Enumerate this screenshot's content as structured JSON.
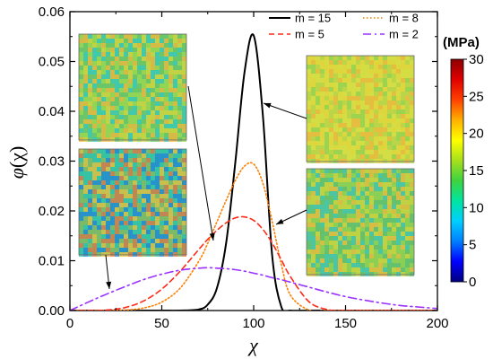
{
  "chart_data": {
    "type": "line",
    "xlabel": "χ",
    "ylabel": "φ(χ)",
    "ylabel_parts": [
      "φ",
      "(χ)"
    ],
    "xlim": [
      0,
      200
    ],
    "ylim": [
      0,
      0.06
    ],
    "x_ticks": [
      0,
      50,
      100,
      150,
      200
    ],
    "x_tick_labels": [
      "0",
      "50",
      "100",
      "150",
      "200"
    ],
    "y_ticks": [
      0,
      0.01,
      0.02,
      0.03,
      0.04,
      0.05,
      0.06
    ],
    "y_tick_labels": [
      "0.00",
      "0.01",
      "0.02",
      "0.03",
      "0.04",
      "0.05",
      "0.06"
    ],
    "grid": false,
    "legend_placement": "top-right",
    "x": [
      0,
      10,
      20,
      30,
      40,
      50,
      60,
      70,
      75,
      80,
      85,
      90,
      95,
      100,
      105,
      110,
      115,
      120,
      130,
      140,
      150,
      160,
      170,
      180,
      190,
      200
    ],
    "series": [
      {
        "name": "m = 15",
        "color": "#000000",
        "dash": "solid",
        "values": [
          0,
          0,
          0,
          0,
          0,
          0,
          0,
          0.0002,
          0.0012,
          0.0045,
          0.0135,
          0.0297,
          0.0478,
          0.0552,
          0.0392,
          0.0113,
          0.0008,
          0,
          0,
          0,
          0,
          0,
          0,
          0,
          0,
          0
        ]
      },
      {
        "name": "m = 8",
        "color": "#ff7f00",
        "dash": "dotted",
        "values": [
          0,
          0,
          0,
          0.0001,
          0.0005,
          0.0017,
          0.0045,
          0.0098,
          0.0135,
          0.0178,
          0.0221,
          0.0261,
          0.029,
          0.0294,
          0.0256,
          0.018,
          0.0093,
          0.0031,
          0.0001,
          0,
          0,
          0,
          0,
          0,
          0,
          0
        ]
      },
      {
        "name": "m = 5",
        "color": "#ff2a1a",
        "dash": "dashed",
        "values": [
          0,
          0,
          0.0001,
          0.0006,
          0.0019,
          0.0043,
          0.0079,
          0.0122,
          0.0143,
          0.0161,
          0.0176,
          0.0186,
          0.0188,
          0.0181,
          0.0163,
          0.0136,
          0.0102,
          0.0068,
          0.0018,
          0.0002,
          0,
          0,
          0,
          0,
          0,
          0
        ]
      },
      {
        "name": "m = 2",
        "color": "#9b30ff",
        "dash": "dashdot",
        "values": [
          0,
          0.0017,
          0.0033,
          0.0048,
          0.0062,
          0.0073,
          0.0081,
          0.0085,
          0.0086,
          0.0085,
          0.0084,
          0.0082,
          0.0079,
          0.0075,
          0.0071,
          0.0066,
          0.0062,
          0.0057,
          0.0047,
          0.0037,
          0.0028,
          0.0021,
          0.0015,
          0.001,
          0.0007,
          0.0004
        ]
      }
    ],
    "colorbar": {
      "title": "(MPa)",
      "min": 0,
      "max": 30,
      "ticks": [
        0,
        5,
        10,
        15,
        20,
        25,
        30
      ],
      "tick_labels": [
        "0",
        "5",
        "10",
        "15",
        "20",
        "25",
        "30"
      ],
      "colors": [
        "#00007f",
        "#0000ff",
        "#007fff",
        "#00cfff",
        "#00e5a0",
        "#3fd23f",
        "#a6e01c",
        "#ffff00",
        "#ffb000",
        "#ff4000",
        "#e00000",
        "#8b0000"
      ]
    },
    "inset_maps": [
      {
        "name": "m = 8",
        "base_color": "#7ec96a",
        "noise_colors": [
          "#d8d63a",
          "#f3b43a",
          "#2fc7c0",
          "#9ad84f",
          "#66c36a"
        ]
      },
      {
        "name": "m = 2",
        "base_color": "#4db69a",
        "noise_colors": [
          "#e8763a",
          "#f0c234",
          "#1c86d9",
          "#2fc7a8",
          "#8bbb57"
        ]
      },
      {
        "name": "m = 15",
        "base_color": "#c2d94a",
        "noise_colors": [
          "#e5d43a",
          "#f0b33c",
          "#8fd152",
          "#d9df43",
          "#b8d34a"
        ]
      },
      {
        "name": "m = 5",
        "base_color": "#7fca62",
        "noise_colors": [
          "#d4d43b",
          "#f1ba3a",
          "#3bc3b9",
          "#8fd152",
          "#5bbf73"
        ]
      }
    ]
  }
}
